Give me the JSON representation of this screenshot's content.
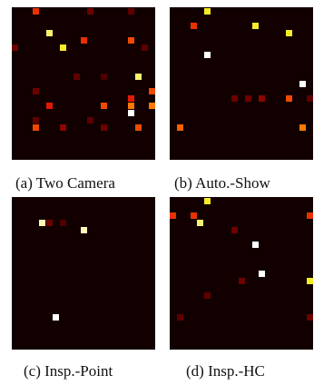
{
  "panels": [
    {
      "id": "a",
      "caption": "(a) Two Camera",
      "cells": [
        {
          "c": 3,
          "r": 0,
          "v": 0.55
        },
        {
          "c": 11,
          "r": 0,
          "v": 0.3
        },
        {
          "c": 17,
          "r": 0,
          "v": 0.25
        },
        {
          "c": 5,
          "r": 3,
          "v": 0.9
        },
        {
          "c": 10,
          "r": 4,
          "v": 0.55
        },
        {
          "c": 17,
          "r": 4,
          "v": 0.6
        },
        {
          "c": 0,
          "r": 5,
          "v": 0.3
        },
        {
          "c": 7,
          "r": 5,
          "v": 0.85
        },
        {
          "c": 19,
          "r": 5,
          "v": 0.25
        },
        {
          "c": 9,
          "r": 9,
          "v": 0.25
        },
        {
          "c": 13,
          "r": 9,
          "v": 0.2
        },
        {
          "c": 18,
          "r": 9,
          "v": 0.9
        },
        {
          "c": 3,
          "r": 11,
          "v": 0.3
        },
        {
          "c": 17,
          "r": 12,
          "v": 0.5
        },
        {
          "c": 20,
          "r": 11,
          "v": 0.6
        },
        {
          "c": 5,
          "r": 13,
          "v": 0.5
        },
        {
          "c": 13,
          "r": 13,
          "v": 0.6
        },
        {
          "c": 17,
          "r": 13,
          "v": 0.7
        },
        {
          "c": 20,
          "r": 13,
          "v": 0.7
        },
        {
          "c": 17,
          "r": 14,
          "v": 1.0
        },
        {
          "c": 3,
          "r": 15,
          "v": 0.25
        },
        {
          "c": 11,
          "r": 15,
          "v": 0.25
        },
        {
          "c": 3,
          "r": 16,
          "v": 0.6
        },
        {
          "c": 7,
          "r": 16,
          "v": 0.35
        },
        {
          "c": 13,
          "r": 16,
          "v": 0.3
        },
        {
          "c": 18,
          "r": 16,
          "v": 0.6
        }
      ]
    },
    {
      "id": "b",
      "caption": "(b) Auto.-Show",
      "cells": [
        {
          "c": 5,
          "r": 0,
          "v": 0.85
        },
        {
          "c": 3,
          "r": 2,
          "v": 0.55
        },
        {
          "c": 12,
          "r": 2,
          "v": 0.85
        },
        {
          "c": 17,
          "r": 3,
          "v": 0.85
        },
        {
          "c": 5,
          "r": 6,
          "v": 1.0
        },
        {
          "c": 19,
          "r": 10,
          "v": 1.0
        },
        {
          "c": 9,
          "r": 12,
          "v": 0.3
        },
        {
          "c": 11,
          "r": 12,
          "v": 0.3
        },
        {
          "c": 13,
          "r": 12,
          "v": 0.35
        },
        {
          "c": 17,
          "r": 12,
          "v": 0.6
        },
        {
          "c": 20,
          "r": 12,
          "v": 0.25
        },
        {
          "c": 1,
          "r": 16,
          "v": 0.65
        },
        {
          "c": 19,
          "r": 16,
          "v": 0.7
        }
      ]
    },
    {
      "id": "c",
      "caption": "(c) Insp.-Point",
      "cells": [
        {
          "c": 4,
          "r": 3,
          "v": 0.95
        },
        {
          "c": 5,
          "r": 3,
          "v": 0.3
        },
        {
          "c": 7,
          "r": 3,
          "v": 0.2
        },
        {
          "c": 10,
          "r": 4,
          "v": 0.95
        },
        {
          "c": 6,
          "r": 16,
          "v": 1.0
        }
      ]
    },
    {
      "id": "d",
      "caption": "(d) Insp.-HC",
      "cells": [
        {
          "c": 5,
          "r": 0,
          "v": 0.85
        },
        {
          "c": 0,
          "r": 2,
          "v": 0.55
        },
        {
          "c": 3,
          "r": 2,
          "v": 0.55
        },
        {
          "c": 4,
          "r": 3,
          "v": 0.9
        },
        {
          "c": 20,
          "r": 2,
          "v": 0.55
        },
        {
          "c": 9,
          "r": 4,
          "v": 0.3
        },
        {
          "c": 12,
          "r": 6,
          "v": 1.0
        },
        {
          "c": 13,
          "r": 10,
          "v": 1.0
        },
        {
          "c": 10,
          "r": 11,
          "v": 0.3
        },
        {
          "c": 20,
          "r": 11,
          "v": 0.85
        },
        {
          "c": 5,
          "r": 13,
          "v": 0.25
        },
        {
          "c": 1,
          "r": 16,
          "v": 0.25
        },
        {
          "c": 20,
          "r": 16,
          "v": 0.3
        }
      ]
    }
  ]
}
